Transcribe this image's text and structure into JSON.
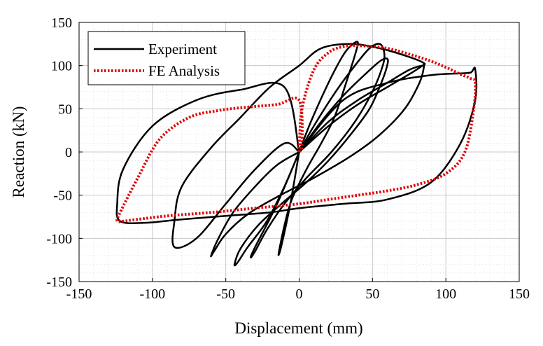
{
  "chart_data": {
    "type": "line",
    "xlabel": "Displacement (mm)",
    "ylabel": "Reaction (kN)",
    "xlim": [
      -150,
      150
    ],
    "ylim": [
      -150,
      150
    ],
    "xticks": [
      "-150",
      "-100",
      "-50",
      "0",
      "50",
      "100",
      "150"
    ],
    "yticks": [
      "150",
      "100",
      "50",
      "0",
      "-50",
      "-100",
      "-150"
    ],
    "grid": "major and minor, dotted gray",
    "legend_position": "top-left",
    "series": [
      {
        "name": "Experiment",
        "color": "#000000",
        "style": "solid",
        "loops": [
          {
            "x": [
              0,
              8,
              20,
              30,
              36,
              40,
              38,
              32,
              24,
              15,
              5,
              -5,
              -10,
              -14,
              -12,
              -6,
              0
            ],
            "y": [
              0,
              35,
              80,
              112,
              124,
              127,
              112,
              80,
              40,
              10,
              -20,
              -55,
              -85,
              -118,
              -108,
              -60,
              0
            ]
          },
          {
            "x": [
              0,
              10,
              25,
              38,
              48,
              55,
              58,
              57,
              50,
              38,
              22,
              5,
              -10,
              -22,
              -30,
              -33,
              -30,
              -15,
              0
            ],
            "y": [
              0,
              30,
              70,
              100,
              120,
              125,
              115,
              100,
              70,
              35,
              0,
              -30,
              -60,
              -90,
              -115,
              -122,
              -110,
              -60,
              0
            ]
          },
          {
            "x": [
              0,
              15,
              30,
              45,
              55,
              60,
              60,
              56,
              48,
              35,
              20,
              5,
              -12,
              -28,
              -40,
              -44,
              -42,
              -35,
              -22,
              -10,
              0
            ],
            "y": [
              0,
              35,
              65,
              90,
              105,
              108,
              100,
              80,
              50,
              20,
              -10,
              -35,
              -60,
              -85,
              -112,
              -130,
              -128,
              -110,
              -80,
              -40,
              0
            ]
          },
          {
            "x": [
              0,
              20,
              40,
              60,
              75,
              84,
              85,
              82,
              72,
              55,
              35,
              10,
              -15,
              -35,
              -50,
              -58,
              -60,
              -55,
              -45,
              -30,
              -15,
              0
            ],
            "y": [
              0,
              35,
              60,
              80,
              95,
              100,
              98,
              80,
              50,
              20,
              -5,
              -30,
              -52,
              -72,
              -95,
              -115,
              -120,
              -100,
              -70,
              -40,
              -15,
              0
            ]
          },
          {
            "x": [
              0,
              20,
              40,
              60,
              75,
              84,
              85,
              75,
              55,
              35,
              15,
              0,
              -20,
              -40,
              -60,
              -80,
              -85,
              -85,
              -70,
              -50,
              -30,
              -10,
              0
            ],
            "y": [
              0,
              30,
              55,
              75,
              90,
              100,
              103,
              110,
              120,
              125,
              120,
              100,
              75,
              40,
              5,
              -40,
              -80,
              -110,
              -100,
              -60,
              -20,
              10,
              0
            ]
          },
          {
            "x": [
              0,
              30,
              60,
              90,
              110,
              117,
              120,
              120,
              110,
              90,
              60,
              30,
              0,
              -20,
              -50,
              -80,
              -105,
              -122,
              -124,
              -120,
              -100,
              -70,
              -40,
              -10,
              0
            ],
            "y": [
              0,
              60,
              80,
              89,
              91,
              92,
              96,
              60,
              10,
              -35,
              -55,
              -60,
              -65,
              -70,
              -74,
              -78,
              -82,
              -80,
              -60,
              -20,
              30,
              60,
              72,
              75,
              0
            ]
          }
        ]
      },
      {
        "name": "FE Analysis",
        "color": "#e00000",
        "style": "dotted",
        "x": [
          0,
          2,
          10,
          20,
          30,
          40,
          60,
          85,
          100,
          110,
          117,
          120,
          119,
          113,
          100,
          80,
          60,
          40,
          20,
          0,
          -30,
          -60,
          -90,
          -110,
          -120,
          -124,
          -122,
          -110,
          -95,
          -75,
          -55,
          -35,
          -15,
          0,
          2,
          0
        ],
        "y": [
          0,
          50,
          95,
          115,
          122,
          123,
          120,
          108,
          98,
          90,
          85,
          80,
          50,
          0,
          -25,
          -38,
          -45,
          -50,
          -55,
          -60,
          -65,
          -70,
          -74,
          -78,
          -80,
          -80,
          -70,
          -30,
          15,
          40,
          48,
          52,
          55,
          60,
          10,
          0
        ]
      }
    ]
  }
}
